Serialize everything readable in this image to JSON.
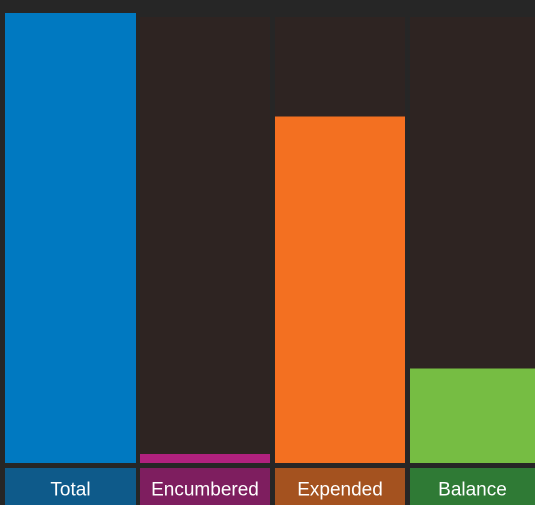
{
  "chart_data": {
    "type": "bar",
    "categories": [
      "Total",
      "Encumbered",
      "Expended",
      "Balance"
    ],
    "values": [
      100,
      2,
      77,
      21
    ],
    "colors": [
      "#0079c1",
      "#b0217e",
      "#f37021",
      "#76bd43"
    ],
    "label_colors": [
      "#0e5a8a",
      "#7e1e5f",
      "#a4521f",
      "#2f7a35"
    ],
    "ylim": [
      0,
      100
    ]
  }
}
